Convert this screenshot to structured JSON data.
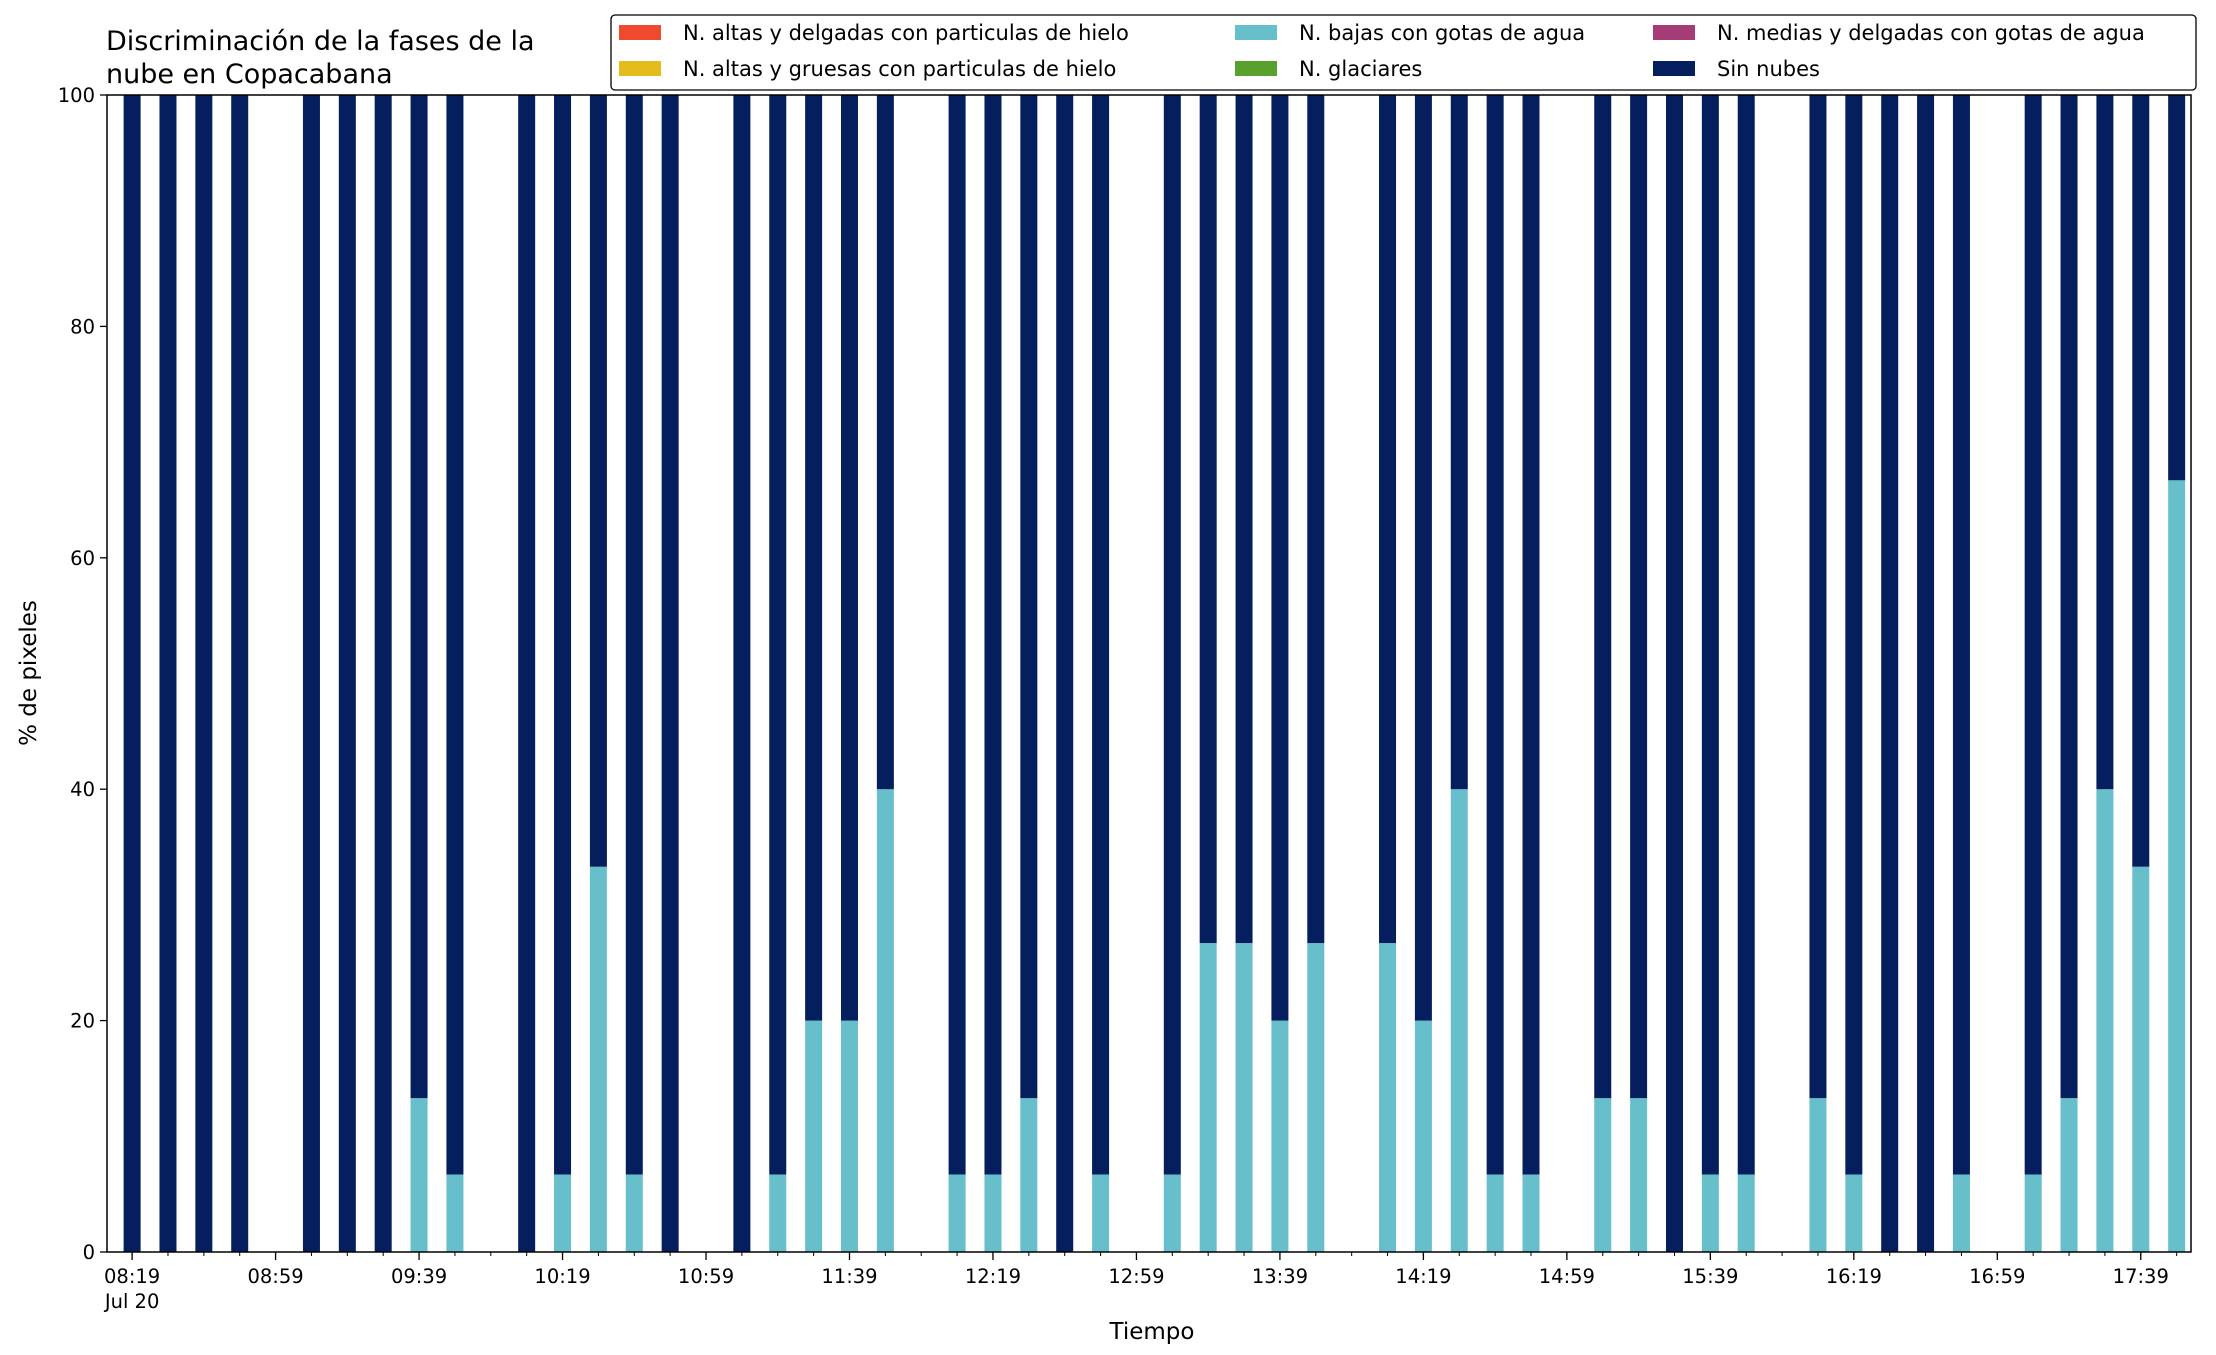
{
  "chart_data": {
    "type": "bar",
    "stacked": true,
    "title": [
      "Discriminación de la fases de la",
      "nube en Copacabana"
    ],
    "xlabel": "Tiempo",
    "ylabel": "% de pixeles",
    "ylim": [
      0,
      100
    ],
    "yticks": [
      0,
      20,
      40,
      60,
      80,
      100
    ],
    "xlim": [
      "08:12",
      "17:53"
    ],
    "xtick_labels": [
      "08:19",
      "08:59",
      "09:39",
      "10:19",
      "10:59",
      "11:39",
      "12:19",
      "12:59",
      "13:39",
      "14:19",
      "14:59",
      "15:39",
      "16:19",
      "16:59",
      "17:39"
    ],
    "xtick_sublabel": "Jul 20",
    "minor_tick_interval_minutes": 10,
    "grid": false,
    "legend_placement": "top-right",
    "legend_columns": 3,
    "series": [
      {
        "name": "N. altas y delgadas con particulas de hielo",
        "color": "#f04a2e"
      },
      {
        "name": "N. altas y gruesas con particulas de hielo",
        "color": "#e4bd1d"
      },
      {
        "name": "N. bajas con gotas de agua",
        "color": "#67bfcb"
      },
      {
        "name": "N. glaciares",
        "color": "#5aa02c"
      },
      {
        "name": "N. medias y delgadas con gotas de agua",
        "color": "#a53c77"
      },
      {
        "name": "Sin nubes",
        "color": "#041e5e"
      }
    ],
    "bars": [
      {
        "time": "08:19",
        "values": [
          0,
          0,
          0,
          0,
          0,
          100
        ]
      },
      {
        "time": "08:29",
        "values": [
          0,
          0,
          0,
          0,
          0,
          100
        ]
      },
      {
        "time": "08:39",
        "values": [
          0,
          0,
          0,
          0,
          0,
          100
        ]
      },
      {
        "time": "08:49",
        "values": [
          0,
          0,
          0,
          0,
          0,
          100
        ]
      },
      {
        "time": "09:09",
        "values": [
          0,
          0,
          0,
          0,
          0,
          100
        ]
      },
      {
        "time": "09:19",
        "values": [
          0,
          0,
          0,
          0,
          0,
          100
        ]
      },
      {
        "time": "09:29",
        "values": [
          0,
          0,
          0,
          0,
          0,
          100
        ]
      },
      {
        "time": "09:39",
        "values": [
          0,
          0,
          13.3,
          0,
          0,
          86.7
        ]
      },
      {
        "time": "09:49",
        "values": [
          0,
          0,
          6.7,
          0,
          0,
          93.3
        ]
      },
      {
        "time": "10:09",
        "values": [
          0,
          0,
          0,
          0,
          0,
          100
        ]
      },
      {
        "time": "10:19",
        "values": [
          0,
          0,
          6.7,
          0,
          0,
          93.3
        ]
      },
      {
        "time": "10:29",
        "values": [
          0,
          0,
          33.3,
          0,
          0,
          66.7
        ]
      },
      {
        "time": "10:39",
        "values": [
          0,
          0,
          6.7,
          0,
          0,
          93.3
        ]
      },
      {
        "time": "10:49",
        "values": [
          0,
          0,
          0,
          0,
          0,
          100
        ]
      },
      {
        "time": "11:09",
        "values": [
          0,
          0,
          0,
          0,
          0,
          100
        ]
      },
      {
        "time": "11:19",
        "values": [
          0,
          0,
          6.7,
          0,
          0,
          93.3
        ]
      },
      {
        "time": "11:29",
        "values": [
          0,
          0,
          20,
          0,
          0,
          80
        ]
      },
      {
        "time": "11:39",
        "values": [
          0,
          0,
          20,
          0,
          0,
          80
        ]
      },
      {
        "time": "11:49",
        "values": [
          0,
          0,
          40,
          0,
          0,
          60
        ]
      },
      {
        "time": "12:09",
        "values": [
          0,
          0,
          6.7,
          0,
          0,
          93.3
        ]
      },
      {
        "time": "12:19",
        "values": [
          0,
          0,
          6.7,
          0,
          0,
          93.3
        ]
      },
      {
        "time": "12:29",
        "values": [
          0,
          0,
          13.3,
          0,
          0,
          86.7
        ]
      },
      {
        "time": "12:39",
        "values": [
          0,
          0,
          0,
          0,
          0,
          100
        ]
      },
      {
        "time": "12:49",
        "values": [
          0,
          0,
          6.7,
          0,
          0,
          93.3
        ]
      },
      {
        "time": "13:09",
        "values": [
          0,
          0,
          6.7,
          0,
          0,
          93.3
        ]
      },
      {
        "time": "13:19",
        "values": [
          0,
          0,
          26.7,
          0,
          0,
          73.3
        ]
      },
      {
        "time": "13:29",
        "values": [
          0,
          0,
          26.7,
          0,
          0,
          73.3
        ]
      },
      {
        "time": "13:39",
        "values": [
          0,
          0,
          20,
          0,
          0,
          80
        ]
      },
      {
        "time": "13:49",
        "values": [
          0,
          0,
          26.7,
          0,
          0,
          73.3
        ]
      },
      {
        "time": "14:09",
        "values": [
          0,
          0,
          26.7,
          0,
          0,
          73.3
        ]
      },
      {
        "time": "14:19",
        "values": [
          0,
          0,
          20,
          0,
          0,
          80
        ]
      },
      {
        "time": "14:29",
        "values": [
          0,
          0,
          40,
          0,
          0,
          60
        ]
      },
      {
        "time": "14:39",
        "values": [
          0,
          0,
          6.7,
          0,
          0,
          93.3
        ]
      },
      {
        "time": "14:49",
        "values": [
          0,
          0,
          6.7,
          0,
          0,
          93.3
        ]
      },
      {
        "time": "15:09",
        "values": [
          0,
          0,
          13.3,
          0,
          0,
          86.7
        ]
      },
      {
        "time": "15:19",
        "values": [
          0,
          0,
          13.3,
          0,
          0,
          86.7
        ]
      },
      {
        "time": "15:29",
        "values": [
          0,
          0,
          0,
          0,
          0,
          100
        ]
      },
      {
        "time": "15:39",
        "values": [
          0,
          0,
          6.7,
          0,
          0,
          93.3
        ]
      },
      {
        "time": "15:49",
        "values": [
          0,
          0,
          6.7,
          0,
          0,
          93.3
        ]
      },
      {
        "time": "16:09",
        "values": [
          0,
          0,
          13.3,
          0,
          0,
          86.7
        ]
      },
      {
        "time": "16:19",
        "values": [
          0,
          0,
          6.7,
          0,
          0,
          93.3
        ]
      },
      {
        "time": "16:29",
        "values": [
          0,
          0,
          0,
          0,
          0,
          100
        ]
      },
      {
        "time": "16:39",
        "values": [
          0,
          0,
          0,
          0,
          0,
          100
        ]
      },
      {
        "time": "16:49",
        "values": [
          0,
          0,
          6.7,
          0,
          0,
          93.3
        ]
      },
      {
        "time": "17:09",
        "values": [
          0,
          0,
          6.7,
          0,
          0,
          93.3
        ]
      },
      {
        "time": "17:19",
        "values": [
          0,
          0,
          13.3,
          0,
          0,
          86.7
        ]
      },
      {
        "time": "17:29",
        "values": [
          0,
          0,
          40,
          0,
          0,
          60
        ]
      },
      {
        "time": "17:39",
        "values": [
          0,
          0,
          33.3,
          0,
          0,
          66.7
        ]
      },
      {
        "time": "17:49",
        "values": [
          0,
          0,
          66.7,
          0,
          0,
          33.3
        ]
      }
    ]
  }
}
